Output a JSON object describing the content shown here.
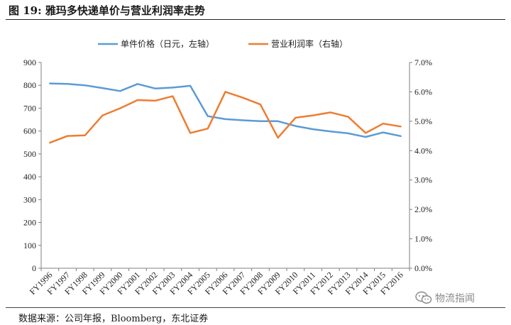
{
  "figure": {
    "title": "图 19: 雅玛多快递单价与营业利润率走势",
    "source": "数据来源：公司年报，Bloomberg，东北证券"
  },
  "watermark": {
    "text": "物流指闻",
    "icon": "wechat-bubble-icon"
  },
  "chart_data": {
    "type": "line",
    "title": "",
    "xlabel": "",
    "ylabel": "",
    "categories": [
      "FY1996",
      "FY1997",
      "FY1998",
      "FY1999",
      "FY2000",
      "FY2001",
      "FY2002",
      "FY2003",
      "FY2004",
      "FY2005",
      "FY2006",
      "FY2007",
      "FY2008",
      "FY2009",
      "FY2010",
      "FY2011",
      "FY2012",
      "FY2013",
      "FY2014",
      "FY2015",
      "FY2016"
    ],
    "y_left": {
      "ylim": [
        0,
        900
      ],
      "ticks": [
        0,
        100,
        200,
        300,
        400,
        500,
        600,
        700,
        800,
        900
      ]
    },
    "y_right": {
      "ylim": [
        0,
        7
      ],
      "ticks": [
        0,
        1,
        2,
        3,
        4,
        5,
        6,
        7
      ],
      "tick_labels": [
        "0.0%",
        "1.0%",
        "2.0%",
        "3.0%",
        "4.0%",
        "5.0%",
        "6.0%",
        "7.0%"
      ]
    },
    "grid": false,
    "legend_position": "top-center",
    "series": [
      {
        "name": "单件价格（日元，左轴）",
        "axis": "left",
        "color": "#5b9bd5",
        "values": [
          808,
          806,
          800,
          788,
          775,
          806,
          786,
          790,
          798,
          665,
          652,
          647,
          643,
          643,
          622,
          608,
          598,
          590,
          574,
          594,
          578
        ]
      },
      {
        "name": "营业利润率（右轴）",
        "axis": "right",
        "color": "#ed7d31",
        "values": [
          4.27,
          4.5,
          4.52,
          5.2,
          5.44,
          5.72,
          5.7,
          5.85,
          4.6,
          4.75,
          6.0,
          5.8,
          5.57,
          4.44,
          5.12,
          5.2,
          5.3,
          5.15,
          4.6,
          4.92,
          4.82
        ]
      }
    ]
  }
}
